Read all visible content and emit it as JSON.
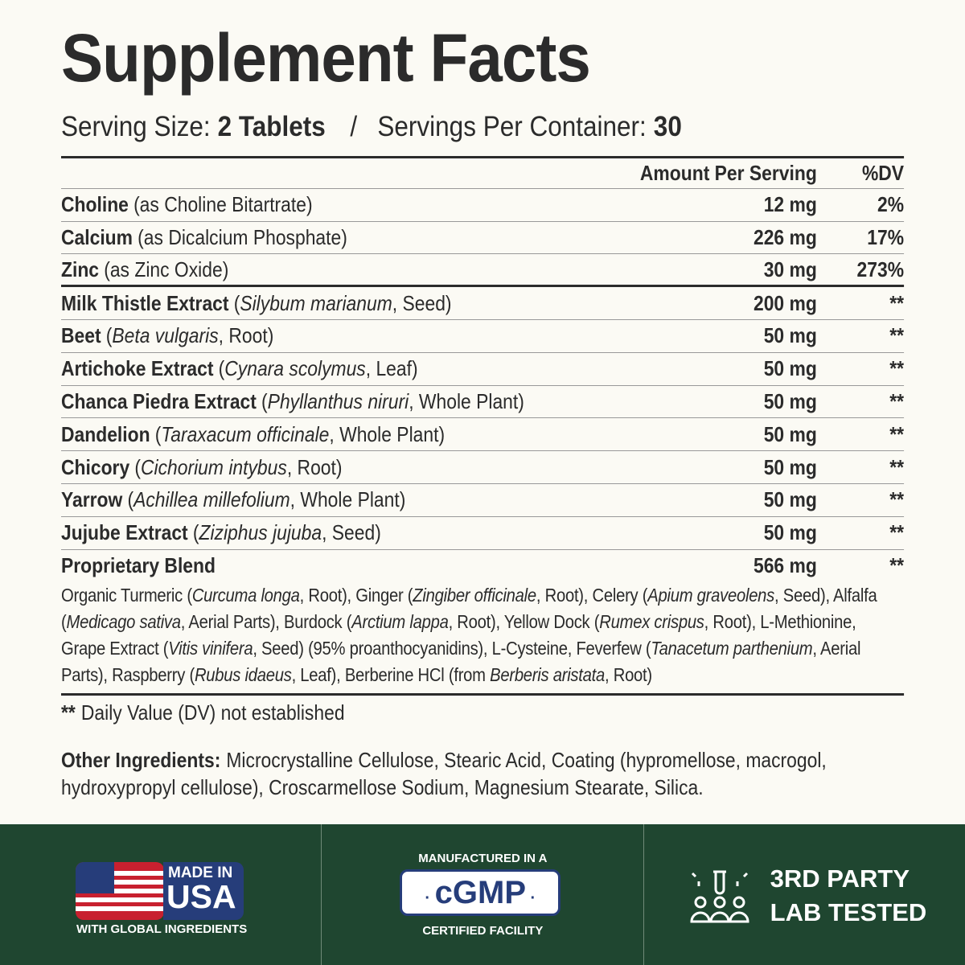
{
  "title": "Supplement Facts",
  "serving": {
    "size_label": "Serving Size:",
    "size": "2 Tablets",
    "separator": "/",
    "per_label": "Servings Per Container:",
    "per": "30"
  },
  "table": {
    "headers": [
      "Amount Per Serving",
      "%DV"
    ],
    "sections": [
      [
        {
          "name": "Choline",
          "detail": [
            "(as Choline Bitartrate)"
          ],
          "amount": "12 mg",
          "dv": "2%"
        },
        {
          "name": "Calcium",
          "detail": [
            "(as Dicalcium Phosphate)"
          ],
          "amount": "226 mg",
          "dv": "17%"
        },
        {
          "name": "Zinc",
          "detail": [
            "(as Zinc Oxide)"
          ],
          "amount": "30 mg",
          "dv": "273%"
        }
      ],
      [
        {
          "name": "Milk Thistle Extract",
          "detail": [
            "(",
            {
              "text": "Silybum marianum",
              "style": "italic"
            },
            ", Seed)"
          ],
          "amount": "200 mg",
          "dv": "**"
        },
        {
          "name": "Beet",
          "detail": [
            "(",
            {
              "text": "Beta vulgaris",
              "style": "italic"
            },
            ", Root)"
          ],
          "amount": "50 mg",
          "dv": "**"
        },
        {
          "name": "Artichoke Extract",
          "detail": [
            "(",
            {
              "text": "Cynara scolymus",
              "style": "italic"
            },
            ", Leaf)"
          ],
          "amount": "50 mg",
          "dv": "**"
        },
        {
          "name": "Chanca Piedra Extract",
          "detail": [
            "(",
            {
              "text": "Phyllanthus niruri",
              "style": "italic"
            },
            ", Whole Plant)"
          ],
          "amount": "50 mg",
          "dv": "**"
        },
        {
          "name": "Dandelion",
          "detail": [
            "(",
            {
              "text": "Taraxacum officinale",
              "style": "italic"
            },
            ", Whole Plant)"
          ],
          "amount": "50 mg",
          "dv": "**"
        },
        {
          "name": "Chicory",
          "detail": [
            "(",
            {
              "text": "Cichorium intybus",
              "style": "italic"
            },
            ", Root)"
          ],
          "amount": "50 mg",
          "dv": "**"
        },
        {
          "name": "Yarrow",
          "detail": [
            "(",
            {
              "text": "Achillea millefolium",
              "style": "italic"
            },
            ", Whole Plant)"
          ],
          "amount": "50 mg",
          "dv": "**"
        },
        {
          "name": "Jujube Extract",
          "detail": [
            "(",
            {
              "text": "Ziziphus jujuba",
              "style": "italic"
            },
            ", Seed)"
          ],
          "amount": "50 mg",
          "dv": "**"
        }
      ]
    ],
    "blend": {
      "name": "Proprietary Blend",
      "amount": "566 mg",
      "dv": "**",
      "description": [
        "Organic Turmeric (",
        {
          "text": "Curcuma longa",
          "style": "italic"
        },
        ", Root), Ginger (",
        {
          "text": "Zingiber officinale",
          "style": "italic"
        },
        ", Root), Celery (",
        {
          "text": "Apium graveolens",
          "style": "italic"
        },
        ", Seed), Alfalfa (",
        {
          "text": "Medicago sativa",
          "style": "italic"
        },
        ", Aerial Parts), Burdock (",
        {
          "text": "Arctium lappa",
          "style": "italic"
        },
        ", Root), Yellow Dock (",
        {
          "text": "Rumex crispus",
          "style": "italic"
        },
        ", Root), L-Methionine, Grape Extract (",
        {
          "text": "Vitis vinifera",
          "style": "italic"
        },
        ", Seed) (95% proanthocyanidins), L-Cysteine, Feverfew (",
        {
          "text": "Tanacetum parthenium",
          "style": "italic"
        },
        ", Aerial Parts), Raspberry (",
        {
          "text": "Rubus idaeus",
          "style": "italic"
        },
        ", Leaf), Berberine HCl (from ",
        {
          "text": "Berberis aristata",
          "style": "italic"
        },
        ", Root)"
      ]
    }
  },
  "footnote": {
    "mark": "**",
    "text": "Daily Value (DV) not established"
  },
  "other_ingredients": {
    "label": "Other Ingredients:",
    "text": "Microcrystalline Cellulose, Stearic Acid, Coating (hypromellose, macrogol, hydroxypropyl cellulose), Croscarmellose Sodium, Magnesium Stearate, Silica."
  },
  "badges": [
    {
      "line1": "MADE IN",
      "line2": "USA",
      "caption": "WITH GLOBAL INGREDIENTS"
    },
    {
      "line1": "MANUFACTURED IN A",
      "line2": "cGMP",
      "caption": "CERTIFIED FACILITY"
    },
    {
      "line1": "3RD PARTY",
      "line2": "LAB TESTED"
    }
  ]
}
